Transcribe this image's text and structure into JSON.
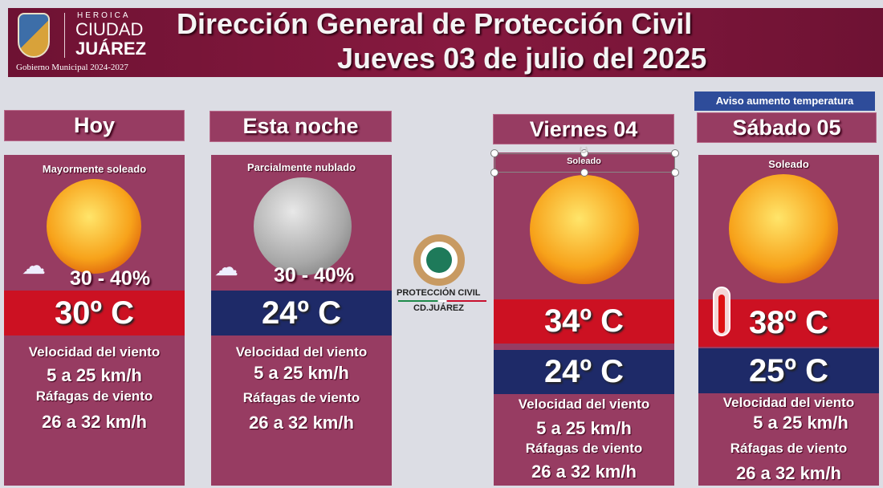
{
  "header": {
    "logo": {
      "heroica": "HEROICA",
      "ciudad": "CIUDAD",
      "juarez": "JUÁREZ",
      "gobierno": "Gobierno Municipal 2024-2027"
    },
    "title": "Dirección General de Protección Civil",
    "subtitle": "Jueves 03 de julio del 2025"
  },
  "center_logo": {
    "line1": "PROTECCIÓN CIVIL",
    "line2": "CD.JUÁREZ"
  },
  "aviso": "Aviso aumento temperatura",
  "labels": {
    "wind": "Velocidad del viento",
    "gusts": "Ráfagas de viento"
  },
  "colors": {
    "maroon": "#7a1a3e",
    "card": "#973c62",
    "max_temp": "#cc1122",
    "min_temp": "#1e2a68",
    "aviso": "#2e4c9a"
  },
  "periods": [
    {
      "title": "Hoy",
      "condition": "Mayormente soleado",
      "icon": "sun-icon",
      "rain_chance": "30 - 40%",
      "temp": "30º C",
      "wind": "5 a 25 km/h",
      "gusts": "26 a 32 km/h"
    },
    {
      "title": "Esta noche",
      "condition": "Parcialmente  nublado",
      "icon": "moon-icon",
      "rain_chance": "30 - 40%",
      "temp": "24º C",
      "wind": "5 a 25 km/h",
      "gusts": "26 a 32 km/h"
    },
    {
      "title": "Viernes 04",
      "condition": "Soleado",
      "icon": "sun-icon",
      "max": "34º C",
      "min": "24º C",
      "wind": "5 a 25 km/h",
      "gusts": "26 a 32 km/h"
    },
    {
      "title": "Sábado 05",
      "condition": "Soleado",
      "icon": "sun-icon",
      "max": "38º C",
      "min": "25º C",
      "wind": "5 a 25 km/h",
      "gusts": "26 a 32 km/h"
    }
  ]
}
